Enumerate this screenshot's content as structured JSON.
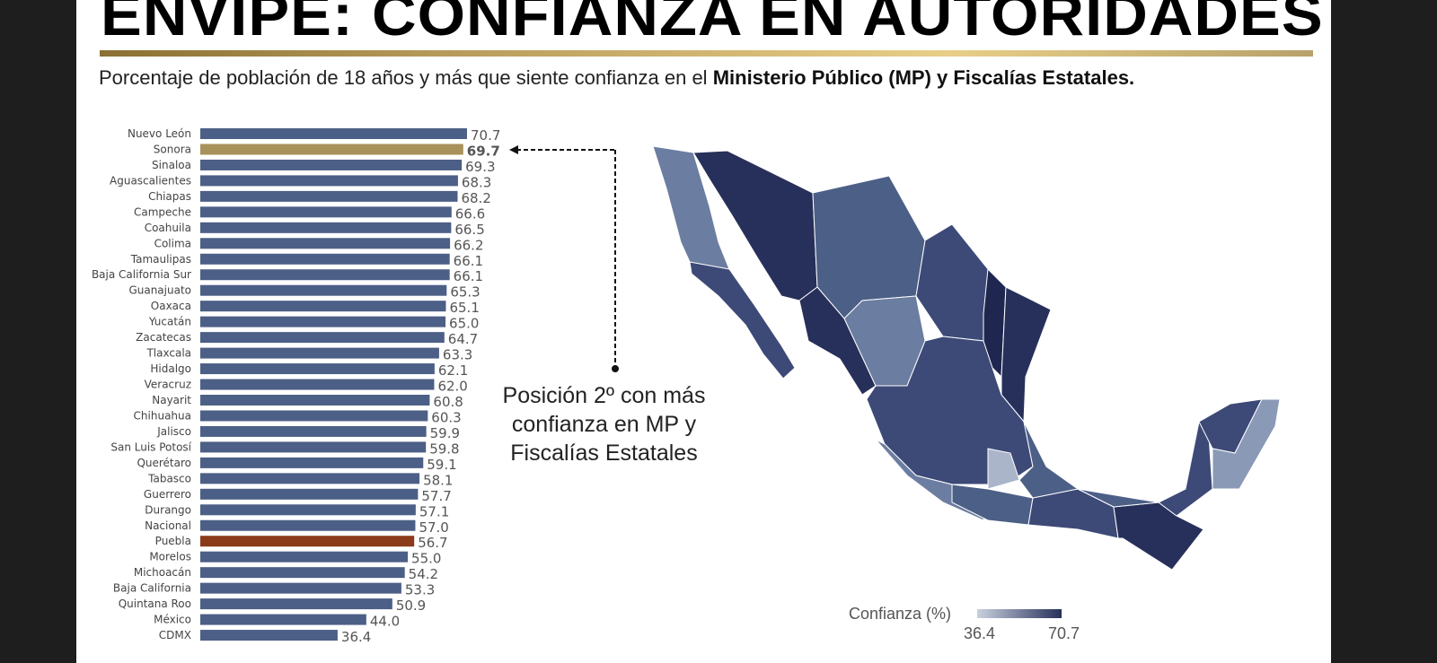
{
  "title": "ENVIPE: CONFIANZA EN AUTORIDADES",
  "subtitle": {
    "normal": "Porcentaje de población de 18 años y más que siente confianza en el ",
    "bold": "Ministerio Público (MP) y Fiscalías Estatales."
  },
  "annotation": "Posición 2º con más confianza en MP y Fiscalías Estatales",
  "legend": {
    "title": "Confianza (%)",
    "min": "36.4",
    "max": "70.7"
  },
  "colors": {
    "default": "#4c5f86",
    "highlight_sonora": "#a8915a",
    "highlight_puebla": "#8b3a1a",
    "map_dark": "#27305a",
    "map_light": "#c9d1df"
  },
  "chart_data": {
    "type": "bar",
    "orientation": "horizontal",
    "categories": [
      "Nuevo León",
      "Sonora",
      "Sinaloa",
      "Aguascalientes",
      "Chiapas",
      "Campeche",
      "Coahuila",
      "Colima",
      "Tamaulipas",
      "Baja California Sur",
      "Guanajuato",
      "Oaxaca",
      "Yucatán",
      "Zacatecas",
      "Tlaxcala",
      "Hidalgo",
      "Veracruz",
      "Nayarit",
      "Chihuahua",
      "Jalisco",
      "San Luis Potosí",
      "Querétaro",
      "Tabasco",
      "Guerrero",
      "Durango",
      "Nacional",
      "Puebla",
      "Morelos",
      "Michoacán",
      "Baja California",
      "Quintana Roo",
      "México",
      "CDMX"
    ],
    "values": [
      70.7,
      69.7,
      69.3,
      68.3,
      68.2,
      66.6,
      66.5,
      66.2,
      66.1,
      66.1,
      65.3,
      65.1,
      65.0,
      64.7,
      63.3,
      62.1,
      62.0,
      60.8,
      60.3,
      59.9,
      59.8,
      59.1,
      58.1,
      57.7,
      57.1,
      57.0,
      56.7,
      55.0,
      54.2,
      53.3,
      50.9,
      44.0,
      36.4
    ],
    "labels": [
      "70.7",
      "69.7",
      "69.3",
      "68.3",
      "68.2",
      "66.6",
      "66.5",
      "66.2",
      "66.1",
      "66.1",
      "65.3",
      "65.1",
      "65.0",
      "64.7",
      "63.3",
      "62.1",
      "62.0",
      "60.8",
      "60.3",
      "59.9",
      "59.8",
      "59.1",
      "58.1",
      "57.7",
      "57.1",
      "57.0",
      "56.7",
      "55.0",
      "54.2",
      "53.3",
      "50.9",
      "44.0",
      "36.4"
    ],
    "highlights": {
      "Sonora": "highlight_sonora",
      "Puebla": "highlight_puebla"
    },
    "xlim": [
      0,
      70.7
    ],
    "title": "",
    "xlabel": "",
    "ylabel": ""
  }
}
